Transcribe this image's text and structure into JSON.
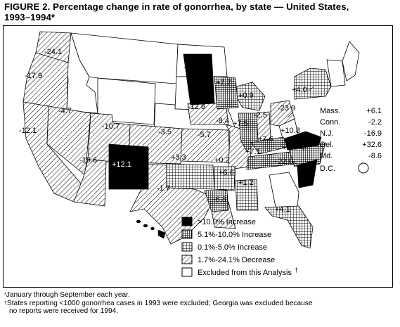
{
  "figure": {
    "title_line1": "FIGURE 2. Percentage change in rate of gonorrhea, by state — United States,",
    "title_line2": "1993–1994*"
  },
  "colors": {
    "ink": "#000000",
    "paper": "#ffffff"
  },
  "legend": {
    "items": [
      {
        "key": "increase_gt10",
        "label": ">10.0% Increase",
        "pattern": "solid-black"
      },
      {
        "key": "increase_5_10",
        "label": "5.1%-10.0% Increase",
        "pattern": "dense-crosshatch"
      },
      {
        "key": "increase_0_5",
        "label": "0.1%-5.0% Increase",
        "pattern": "grid"
      },
      {
        "key": "decrease",
        "label": "1.7%-24.1% Decrease",
        "pattern": "diagonal-hatch"
      },
      {
        "key": "excluded",
        "label": "Excluded from this Analysis",
        "pattern": "white"
      }
    ],
    "excluded_dagger": "†"
  },
  "state_values": [
    {
      "state": "WA",
      "label": "-24.1"
    },
    {
      "state": "OR",
      "label": "-17.9"
    },
    {
      "state": "NV",
      "label": "-4.7"
    },
    {
      "state": "CA",
      "label": "-12.1"
    },
    {
      "state": "UT",
      "label": "-10.7"
    },
    {
      "state": "AZ",
      "label": "-19.6"
    },
    {
      "state": "NM",
      "label": "+12.1"
    },
    {
      "state": "CO",
      "label": "-3.5"
    },
    {
      "state": "KS",
      "label": "-5.7"
    },
    {
      "state": "OK",
      "label": "+3.3"
    },
    {
      "state": "TX",
      "label": "-1.7"
    },
    {
      "state": "MN",
      "label": "+29.2"
    },
    {
      "state": "WI",
      "label": "+7.7"
    },
    {
      "state": "IA",
      "label": "-12.8"
    },
    {
      "state": "MO",
      "label": "-8.4"
    },
    {
      "state": "AR",
      "label": "+0.2"
    },
    {
      "state": "LA",
      "label": "+6.6"
    },
    {
      "state": "MS",
      "label": "-6.8"
    },
    {
      "state": "IL",
      "label": "+7.5"
    },
    {
      "state": "IN",
      "label": "-2.5"
    },
    {
      "state": "MI",
      "label": "+0.9"
    },
    {
      "state": "OH",
      "label": "-23.9"
    },
    {
      "state": "KY",
      "label": "+7.6"
    },
    {
      "state": "TN",
      "label": "+7.1"
    },
    {
      "state": "AL",
      "label": "+1.2"
    },
    {
      "state": "VA",
      "label": "+10.8"
    },
    {
      "state": "NC",
      "label": "+7.4"
    },
    {
      "state": "SC",
      "label": "+22.0"
    },
    {
      "state": "FL",
      "label": "+4.1"
    },
    {
      "state": "NY",
      "label": "+4.0"
    }
  ],
  "northeast_values": [
    {
      "state": "Mass.",
      "value": "+6.1"
    },
    {
      "state": "Conn.",
      "value": "-2.2"
    },
    {
      "state": "N.J.",
      "value": "-16.9"
    },
    {
      "state": "Del.",
      "value": "+32.6"
    },
    {
      "state": "Md.",
      "value": "-8.6"
    },
    {
      "state": "D.C.",
      "value": ""
    }
  ],
  "footnotes": {
    "star_mark": "*",
    "star_text": "January through September each year.",
    "dagger_mark": "†",
    "dagger_text_1": "States reporting <1000 gonorrhea cases in 1993 were excluded; Georgia was excluded because",
    "dagger_text_2": "no reports were received for 1994."
  }
}
